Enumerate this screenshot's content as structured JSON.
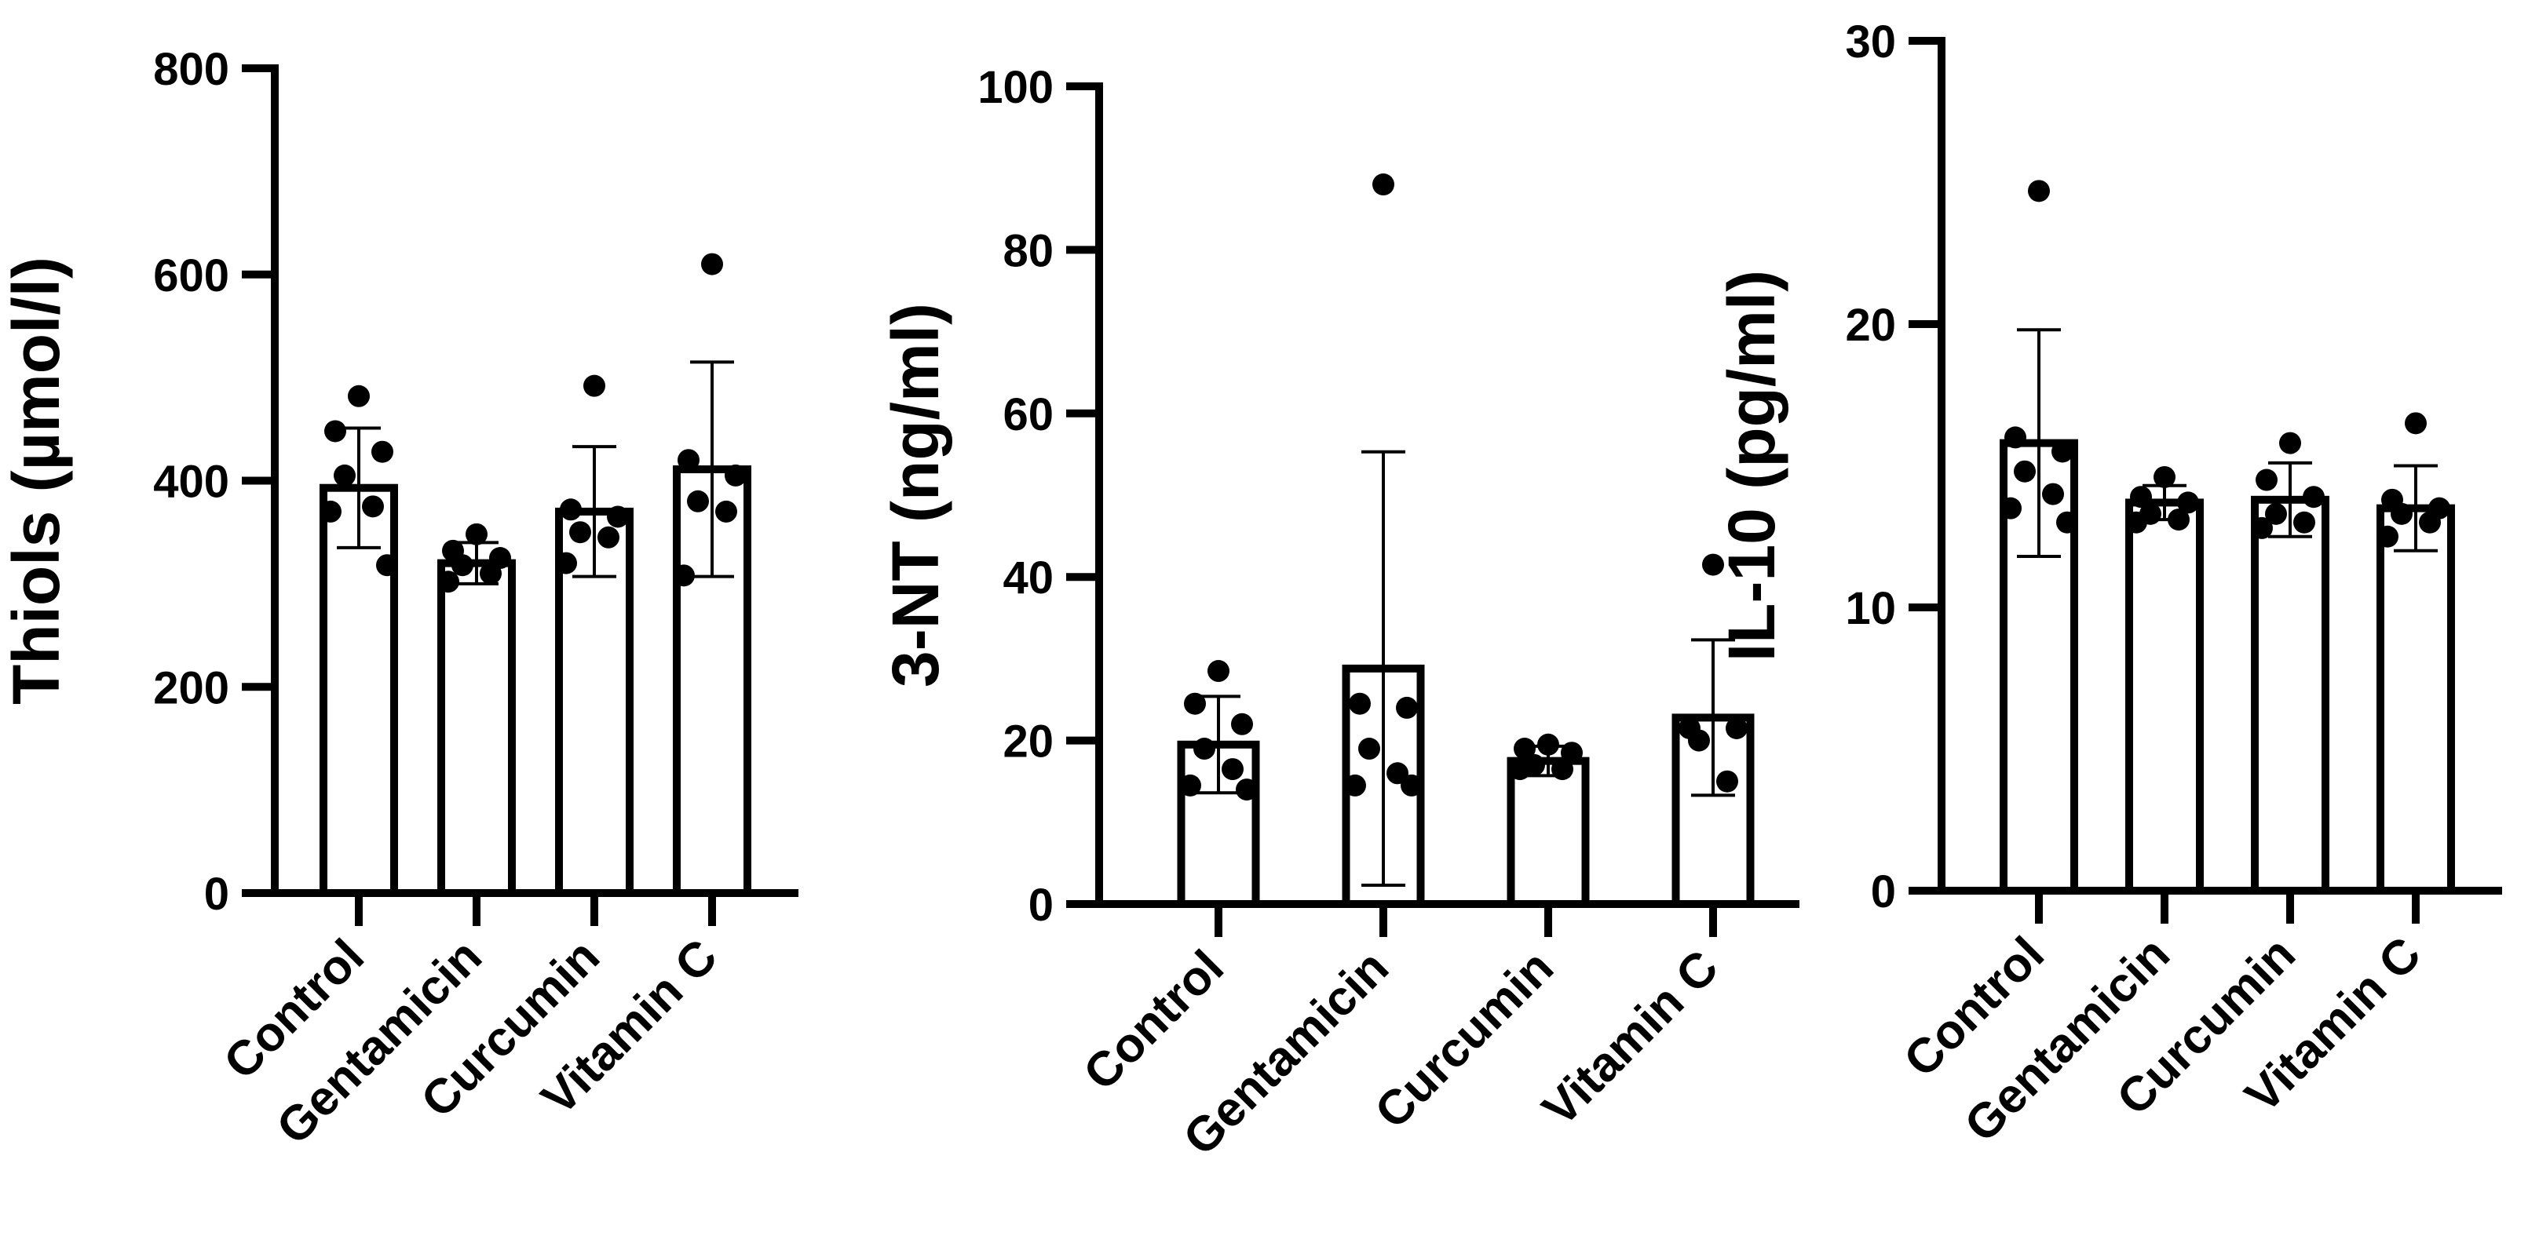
{
  "chart_data": [
    {
      "type": "bar",
      "ylabel": "Thiols (µmol/l)",
      "categories": [
        "Control",
        "Gentamicin",
        "Curcumin",
        "Vitamin C"
      ],
      "ylim": [
        0,
        800
      ],
      "yticks": [
        0,
        200,
        400,
        600,
        800
      ],
      "means": [
        393,
        320,
        370,
        411
      ],
      "sd": [
        58,
        20,
        63,
        104
      ],
      "points": [
        [
          482,
          448,
          428,
          405,
          375,
          370,
          318
        ],
        [
          348,
          332,
          325,
          318,
          310,
          302
        ],
        [
          492,
          372,
          365,
          350,
          345,
          320
        ],
        [
          610,
          420,
          405,
          380,
          370,
          308
        ]
      ]
    },
    {
      "type": "bar",
      "ylabel": "3-NT (ng/ml)",
      "categories": [
        "Control",
        "Gentamicin",
        "Curcumin",
        "Vitamin C"
      ],
      "ylim": [
        0,
        100
      ],
      "yticks": [
        0,
        20,
        40,
        60,
        80,
        100
      ],
      "means": [
        19.5,
        28.8,
        17.5,
        22.8
      ],
      "sd": [
        5.9,
        26.5,
        1.8,
        9.5
      ],
      "points": [
        [
          28.5,
          24.5,
          22,
          19,
          16.5,
          14.5,
          14
        ],
        [
          88,
          24.5,
          24,
          19,
          16,
          14.5,
          14.5
        ],
        [
          19.5,
          19,
          18.5,
          17,
          16.5,
          16.5
        ],
        [
          41.5,
          21.5,
          21.5,
          20,
          15
        ]
      ]
    },
    {
      "type": "bar",
      "ylabel": "IL-10 (pg/ml)",
      "categories": [
        "Control",
        "Gentamicin",
        "Curcumin",
        "Vitamin C"
      ],
      "ylim": [
        0,
        30
      ],
      "yticks": [
        0,
        10,
        20,
        30
      ],
      "means": [
        15.8,
        13.7,
        13.8,
        13.5
      ],
      "sd": [
        4.0,
        0.6,
        1.3,
        1.5
      ],
      "points": [
        [
          24.7,
          16.0,
          15.5,
          14.8,
          14.0,
          13.5,
          13.0
        ],
        [
          14.6,
          13.9,
          13.7,
          13.3,
          13.1,
          13.0
        ],
        [
          15.8,
          14.5,
          13.9,
          13.3,
          13.0,
          12.8
        ],
        [
          16.5,
          13.8,
          13.5,
          13.3,
          13.0,
          12.5
        ]
      ]
    }
  ]
}
